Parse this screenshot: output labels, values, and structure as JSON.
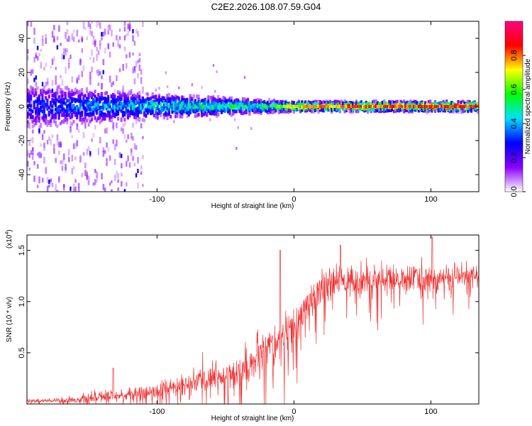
{
  "title": "C2E2.2026.108.07.59.G04",
  "chart_data": [
    {
      "type": "heatmap",
      "name": "spectrogram",
      "xlabel": "Height of straight line (km)",
      "ylabel": "Frequency (Hz)",
      "xlim": [
        -195,
        135
      ],
      "ylim": [
        -50,
        50
      ],
      "xticks": [
        -100,
        0,
        100
      ],
      "xtick_labels": [
        "-100",
        "0",
        "100"
      ],
      "yticks": [
        -40,
        -20,
        0,
        20,
        40
      ],
      "ytick_labels": [
        "-40",
        "-20",
        "0",
        "20",
        "40"
      ],
      "colorbar": {
        "label": "Normalized spectral amplitude",
        "range": [
          0.0,
          1.0
        ],
        "ticks": [
          0.0,
          0.2,
          0.4,
          0.6,
          0.8
        ],
        "tick_labels": [
          "0.0",
          "0.2",
          "0.4",
          "0.6",
          "0.8"
        ],
        "colormap": [
          "#ffffff",
          "#8a00ff",
          "#0000ff",
          "#00e0ff",
          "#00ff00",
          "#ffff00",
          "#ff0000",
          "#ff0080"
        ]
      },
      "description_of_data": {
        "centerline_hz": 0,
        "band_halfwidth_hz": [
          [
            -195,
            14
          ],
          [
            -100,
            8
          ],
          [
            -20,
            4
          ],
          [
            0,
            3
          ],
          [
            135,
            3
          ]
        ],
        "peak_amplitude": [
          [
            -195,
            0.28
          ],
          [
            -100,
            0.45
          ],
          [
            -20,
            0.55
          ],
          [
            0,
            0.75
          ],
          [
            50,
            0.85
          ],
          [
            135,
            0.9
          ]
        ]
      }
    },
    {
      "type": "line",
      "name": "snr",
      "xlabel": "Height of straight line (km)",
      "ylabel": "SNR (10 * v/v)",
      "scale_label": "(x10",
      "scale_exponent": "4",
      "scale_suffix": ")",
      "xlim": [
        -195,
        135
      ],
      "ylim": [
        0,
        1.65
      ],
      "xticks": [
        -100,
        0,
        100
      ],
      "xtick_labels": [
        "-100",
        "0",
        "100"
      ],
      "yticks": [
        0.5,
        1.0,
        1.5
      ],
      "ytick_labels": [
        "0.5",
        "1.0",
        "1.5"
      ],
      "color": "#f03030",
      "x": [
        -195,
        -180,
        -160,
        -140,
        -120,
        -100,
        -80,
        -60,
        -40,
        -30,
        -20,
        -15,
        -10,
        -5,
        0,
        5,
        10,
        20,
        30,
        40,
        60,
        80,
        100,
        120,
        135
      ],
      "y": [
        0.03,
        0.03,
        0.04,
        0.07,
        0.09,
        0.13,
        0.18,
        0.25,
        0.33,
        0.4,
        0.5,
        0.58,
        0.62,
        0.66,
        0.73,
        0.84,
        0.98,
        1.12,
        1.18,
        1.2,
        1.22,
        1.22,
        1.23,
        1.24,
        1.25
      ],
      "noise_amplitude": [
        0.02,
        0.02,
        0.03,
        0.05,
        0.06,
        0.08,
        0.1,
        0.13,
        0.16,
        0.18,
        0.22,
        0.22,
        0.22,
        0.2,
        0.18,
        0.16,
        0.15,
        0.15,
        0.14,
        0.14,
        0.14,
        0.13,
        0.13,
        0.13,
        0.13
      ],
      "annotated_peaks": [
        [
          -132,
          0.35
        ],
        [
          -10,
          1.5
        ],
        [
          34,
          1.55
        ],
        [
          101,
          1.63
        ]
      ]
    }
  ]
}
